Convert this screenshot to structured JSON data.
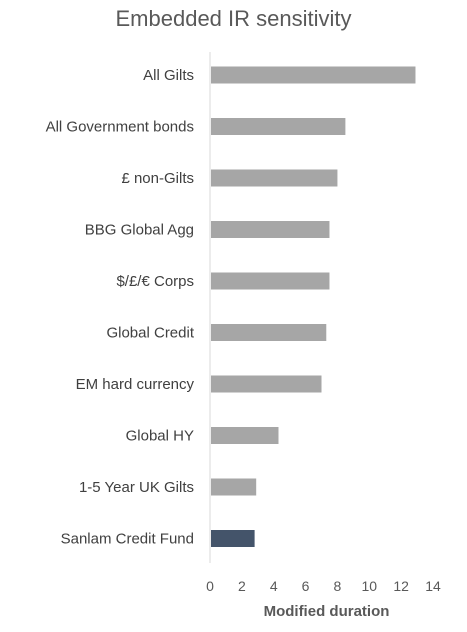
{
  "chart_data": {
    "type": "bar",
    "orientation": "horizontal",
    "title": "Embedded IR sensitivity",
    "xlabel": "Modified duration",
    "ylabel": "",
    "categories": [
      "All Gilts",
      "All Government bonds",
      "£ non-Gilts",
      "BBG Global Agg",
      "$/£/€ Corps",
      "Global Credit",
      "EM hard currency",
      "Global HY",
      "1-5 Year UK Gilts",
      "Sanlam Credit Fund"
    ],
    "values": [
      12.9,
      8.5,
      8.0,
      7.5,
      7.5,
      7.3,
      7.0,
      4.3,
      2.9,
      2.8
    ],
    "bar_colors": [
      "#a6a6a6",
      "#a6a6a6",
      "#a6a6a6",
      "#a6a6a6",
      "#a6a6a6",
      "#a6a6a6",
      "#a6a6a6",
      "#a6a6a6",
      "#a6a6a6",
      "#44546a"
    ],
    "xlim": [
      0,
      14
    ],
    "xticks": [
      0,
      2,
      4,
      6,
      8,
      10,
      12,
      14
    ],
    "grid": false,
    "legend": "none"
  }
}
